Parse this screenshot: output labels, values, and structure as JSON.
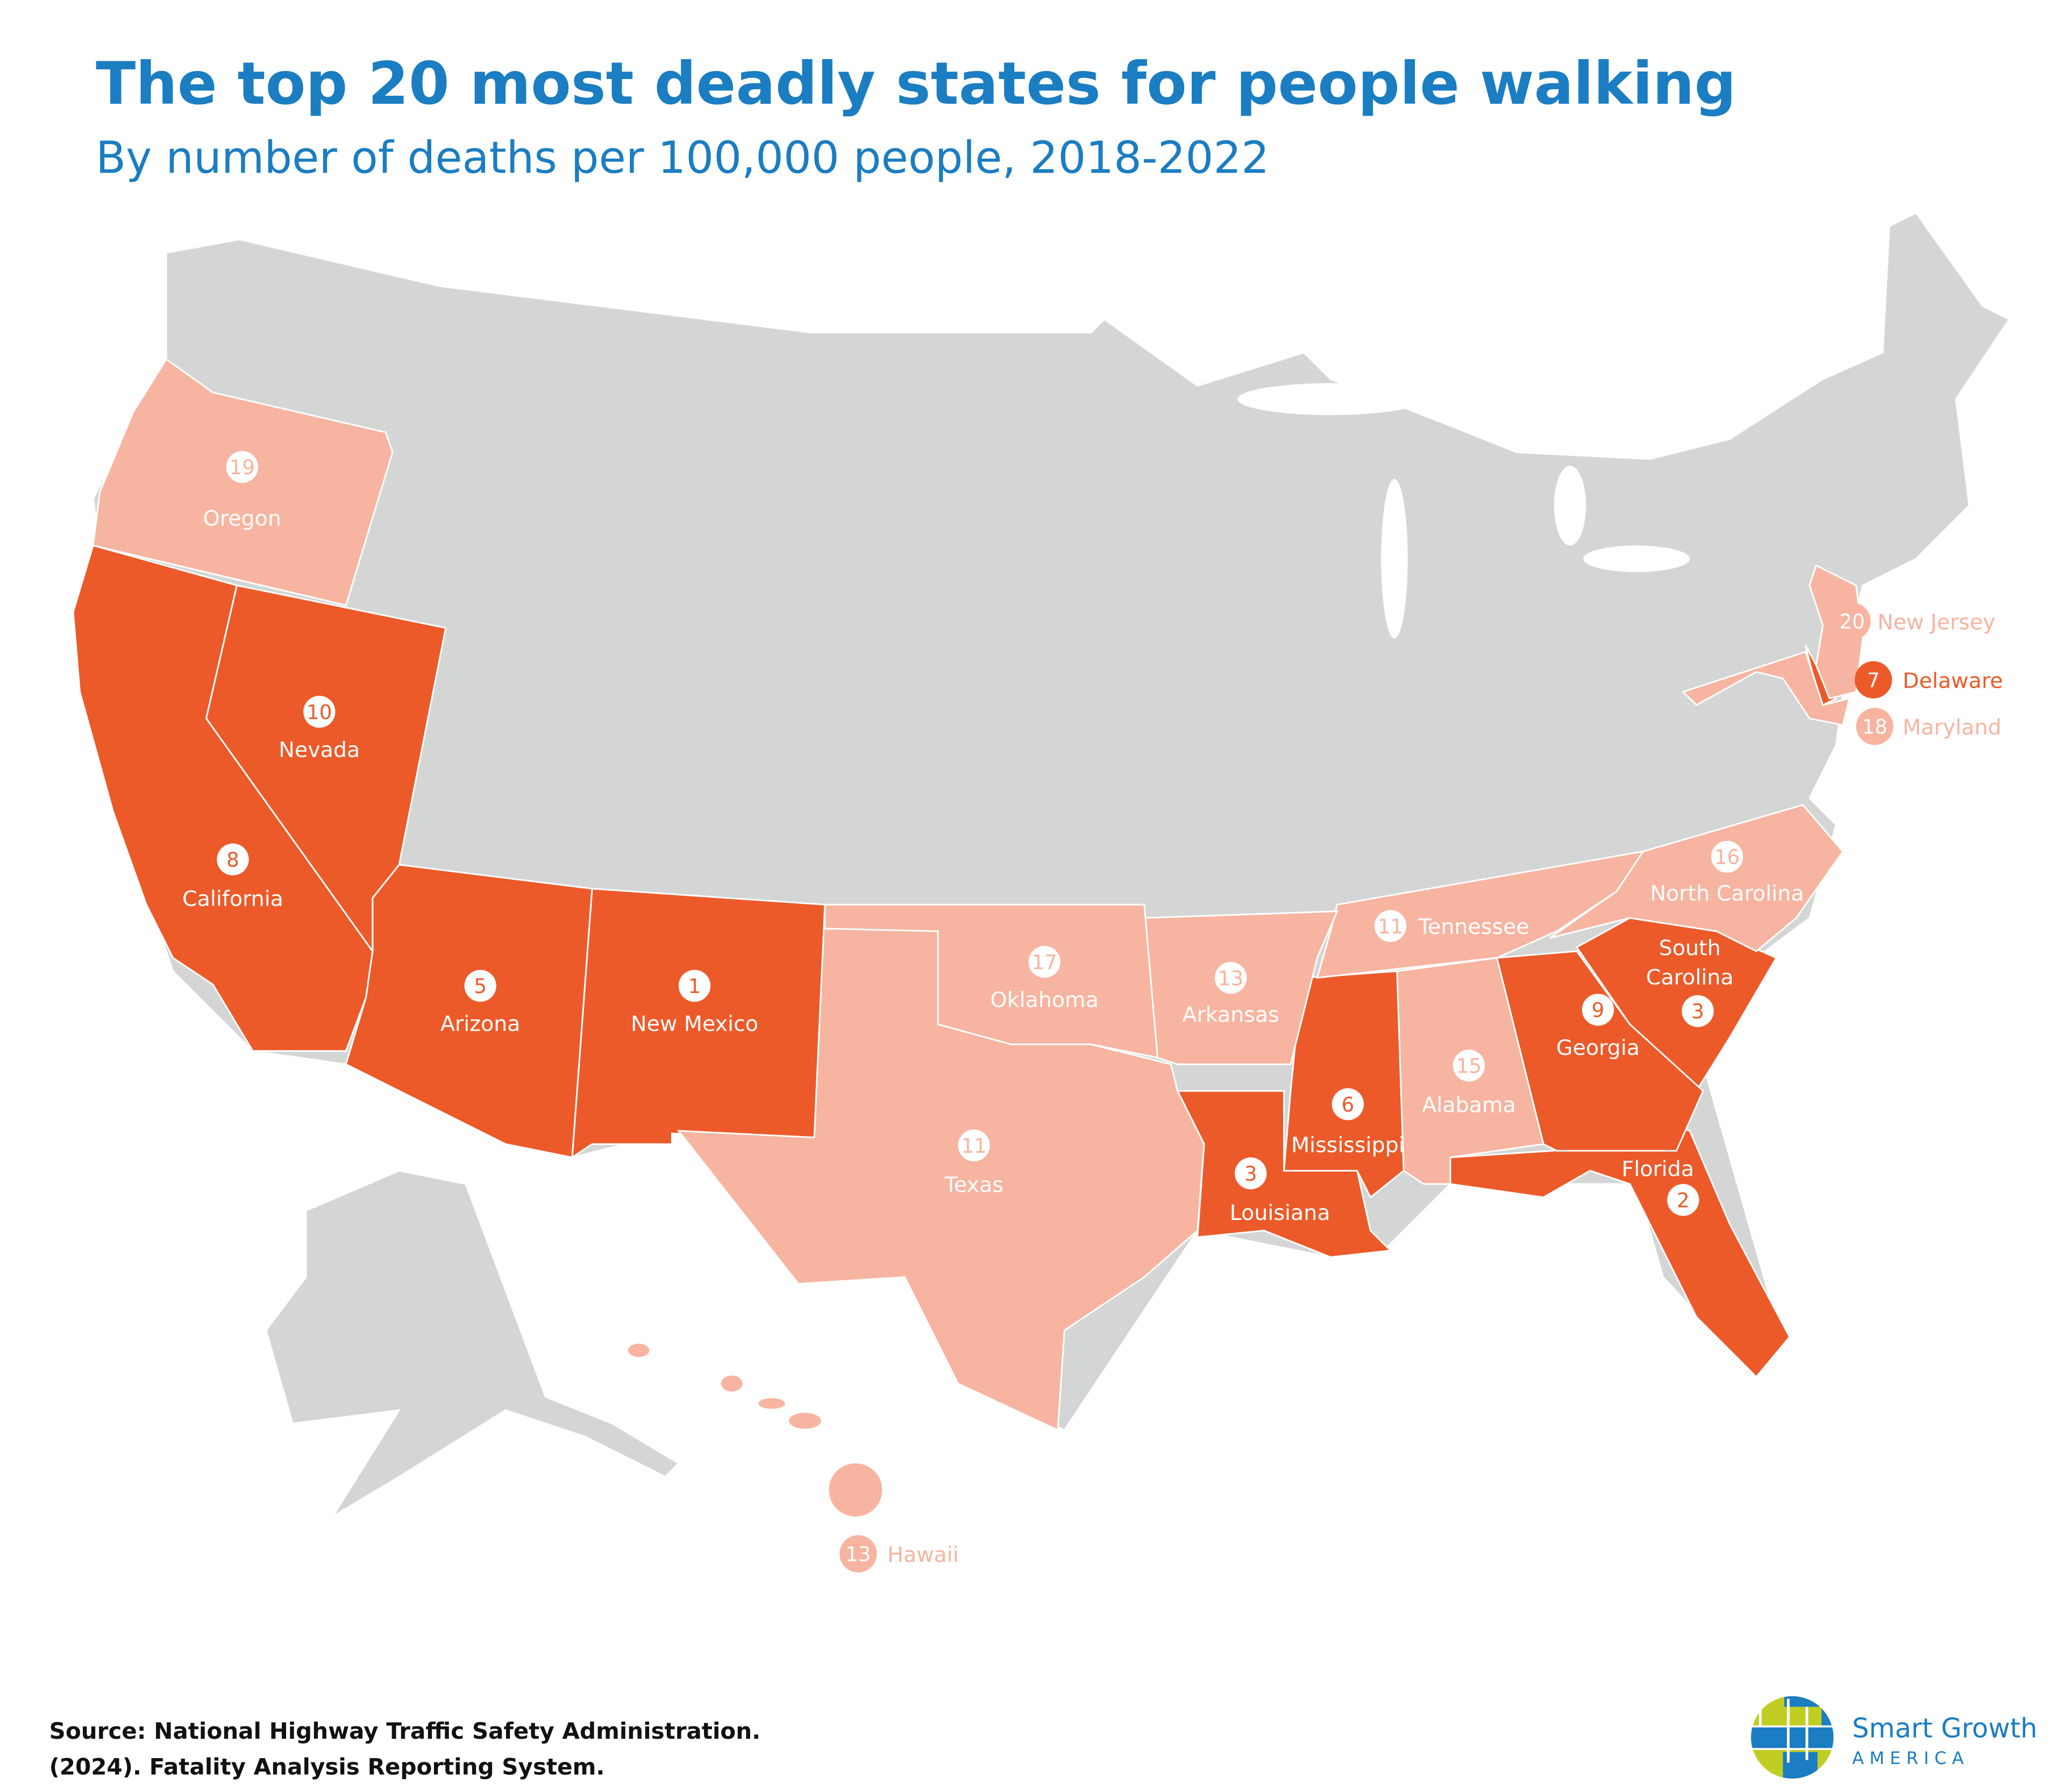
{
  "header": {
    "title": "The top 20 most deadly states for people walking",
    "subtitle": "By number of deaths per 100,000 people, 2018-2022"
  },
  "source": {
    "line1": "Source: National Highway Traffic Safety Administration.",
    "line2": "(2024). Fatality Analysis Reporting System."
  },
  "logo": {
    "name": "Smart Growth",
    "sub": "A M E R I C A"
  },
  "colors": {
    "top10": "#EC5A29",
    "rank11to20": "#F7B4A0",
    "other": "#D4D5D5",
    "title": "#1B7DC2",
    "logo_green": "#C2CD23",
    "logo_blue": "#1B7DC2"
  },
  "states": [
    {
      "name": "New Mexico",
      "rank": "1",
      "tier": "top10"
    },
    {
      "name": "Florida",
      "rank": "2",
      "tier": "top10"
    },
    {
      "name": "South Carolina",
      "rank": "3",
      "tier": "top10"
    },
    {
      "name": "Louisiana",
      "rank": "3",
      "tier": "top10"
    },
    {
      "name": "Arizona",
      "rank": "5",
      "tier": "top10"
    },
    {
      "name": "Mississippi",
      "rank": "6",
      "tier": "top10"
    },
    {
      "name": "Delaware",
      "rank": "7",
      "tier": "top10"
    },
    {
      "name": "California",
      "rank": "8",
      "tier": "top10"
    },
    {
      "name": "Georgia",
      "rank": "9",
      "tier": "top10"
    },
    {
      "name": "Nevada",
      "rank": "10",
      "tier": "top10"
    },
    {
      "name": "Tennessee",
      "rank": "11",
      "tier": "rank11to20"
    },
    {
      "name": "Texas",
      "rank": "11",
      "tier": "rank11to20"
    },
    {
      "name": "Arkansas",
      "rank": "13",
      "tier": "rank11to20"
    },
    {
      "name": "Hawaii",
      "rank": "13",
      "tier": "rank11to20"
    },
    {
      "name": "Alabama",
      "rank": "15",
      "tier": "rank11to20"
    },
    {
      "name": "North Carolina",
      "rank": "16",
      "tier": "rank11to20"
    },
    {
      "name": "Oklahoma",
      "rank": "17",
      "tier": "rank11to20"
    },
    {
      "name": "Maryland",
      "rank": "18",
      "tier": "rank11to20"
    },
    {
      "name": "Oregon",
      "rank": "19",
      "tier": "rank11to20"
    },
    {
      "name": "New Jersey",
      "rank": "20",
      "tier": "rank11to20"
    }
  ]
}
